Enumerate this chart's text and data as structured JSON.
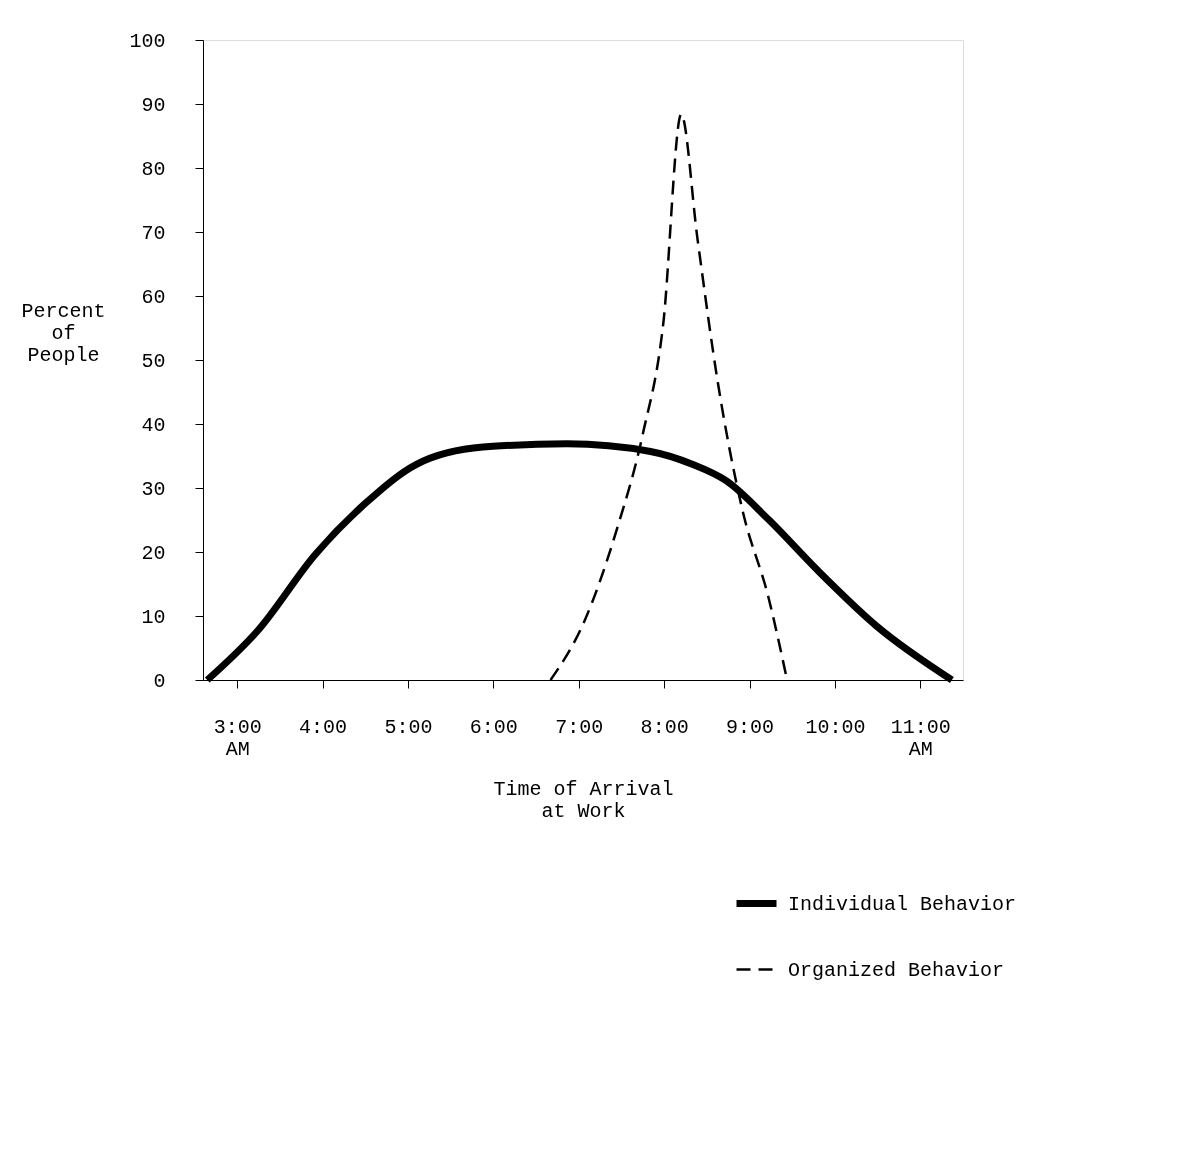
{
  "chart_data": {
    "type": "line",
    "xlabel": "Time of Arrival at Work",
    "ylabel": "Percent of People",
    "xlim": [
      2.6,
      11.5
    ],
    "ylim": [
      0,
      100
    ],
    "xticks": [
      {
        "value": 3,
        "label": "3:00 AM"
      },
      {
        "value": 4,
        "label": "4:00"
      },
      {
        "value": 5,
        "label": "5:00"
      },
      {
        "value": 6,
        "label": "6:00"
      },
      {
        "value": 7,
        "label": "7:00"
      },
      {
        "value": 8,
        "label": "8:00"
      },
      {
        "value": 9,
        "label": "9:00"
      },
      {
        "value": 10,
        "label": "10:00"
      },
      {
        "value": 11,
        "label": "11:00 AM"
      }
    ],
    "yticks": [
      0,
      10,
      20,
      30,
      40,
      50,
      60,
      70,
      80,
      90,
      100
    ],
    "grid": false,
    "legend": "bottom right",
    "marker": "none",
    "series": [
      {
        "name": "Individual Behavior",
        "color": "#000000",
        "line_style": "solid",
        "x": [
          2.65,
          3.24,
          3.92,
          4.51,
          5.1,
          5.88,
          6.86,
          7.84,
          8.33,
          8.73,
          9.22,
          9.8,
          10.49,
          11.37
        ],
        "values": [
          0,
          7.7,
          19.7,
          27.7,
          33.7,
          36.4,
          36.9,
          35.7,
          33.7,
          31.1,
          25.1,
          17.1,
          8.4,
          0
        ]
      },
      {
        "name": "Organized Behavior",
        "color": "#000000",
        "line_style": "dashed",
        "x": [
          6.67,
          7.06,
          7.45,
          7.75,
          7.99,
          8.2,
          8.39,
          8.63,
          8.92,
          9.22,
          9.44
        ],
        "values": [
          0,
          9,
          23.7,
          38.4,
          55.7,
          88.4,
          69,
          46.4,
          26.4,
          13,
          0
        ]
      }
    ]
  }
}
